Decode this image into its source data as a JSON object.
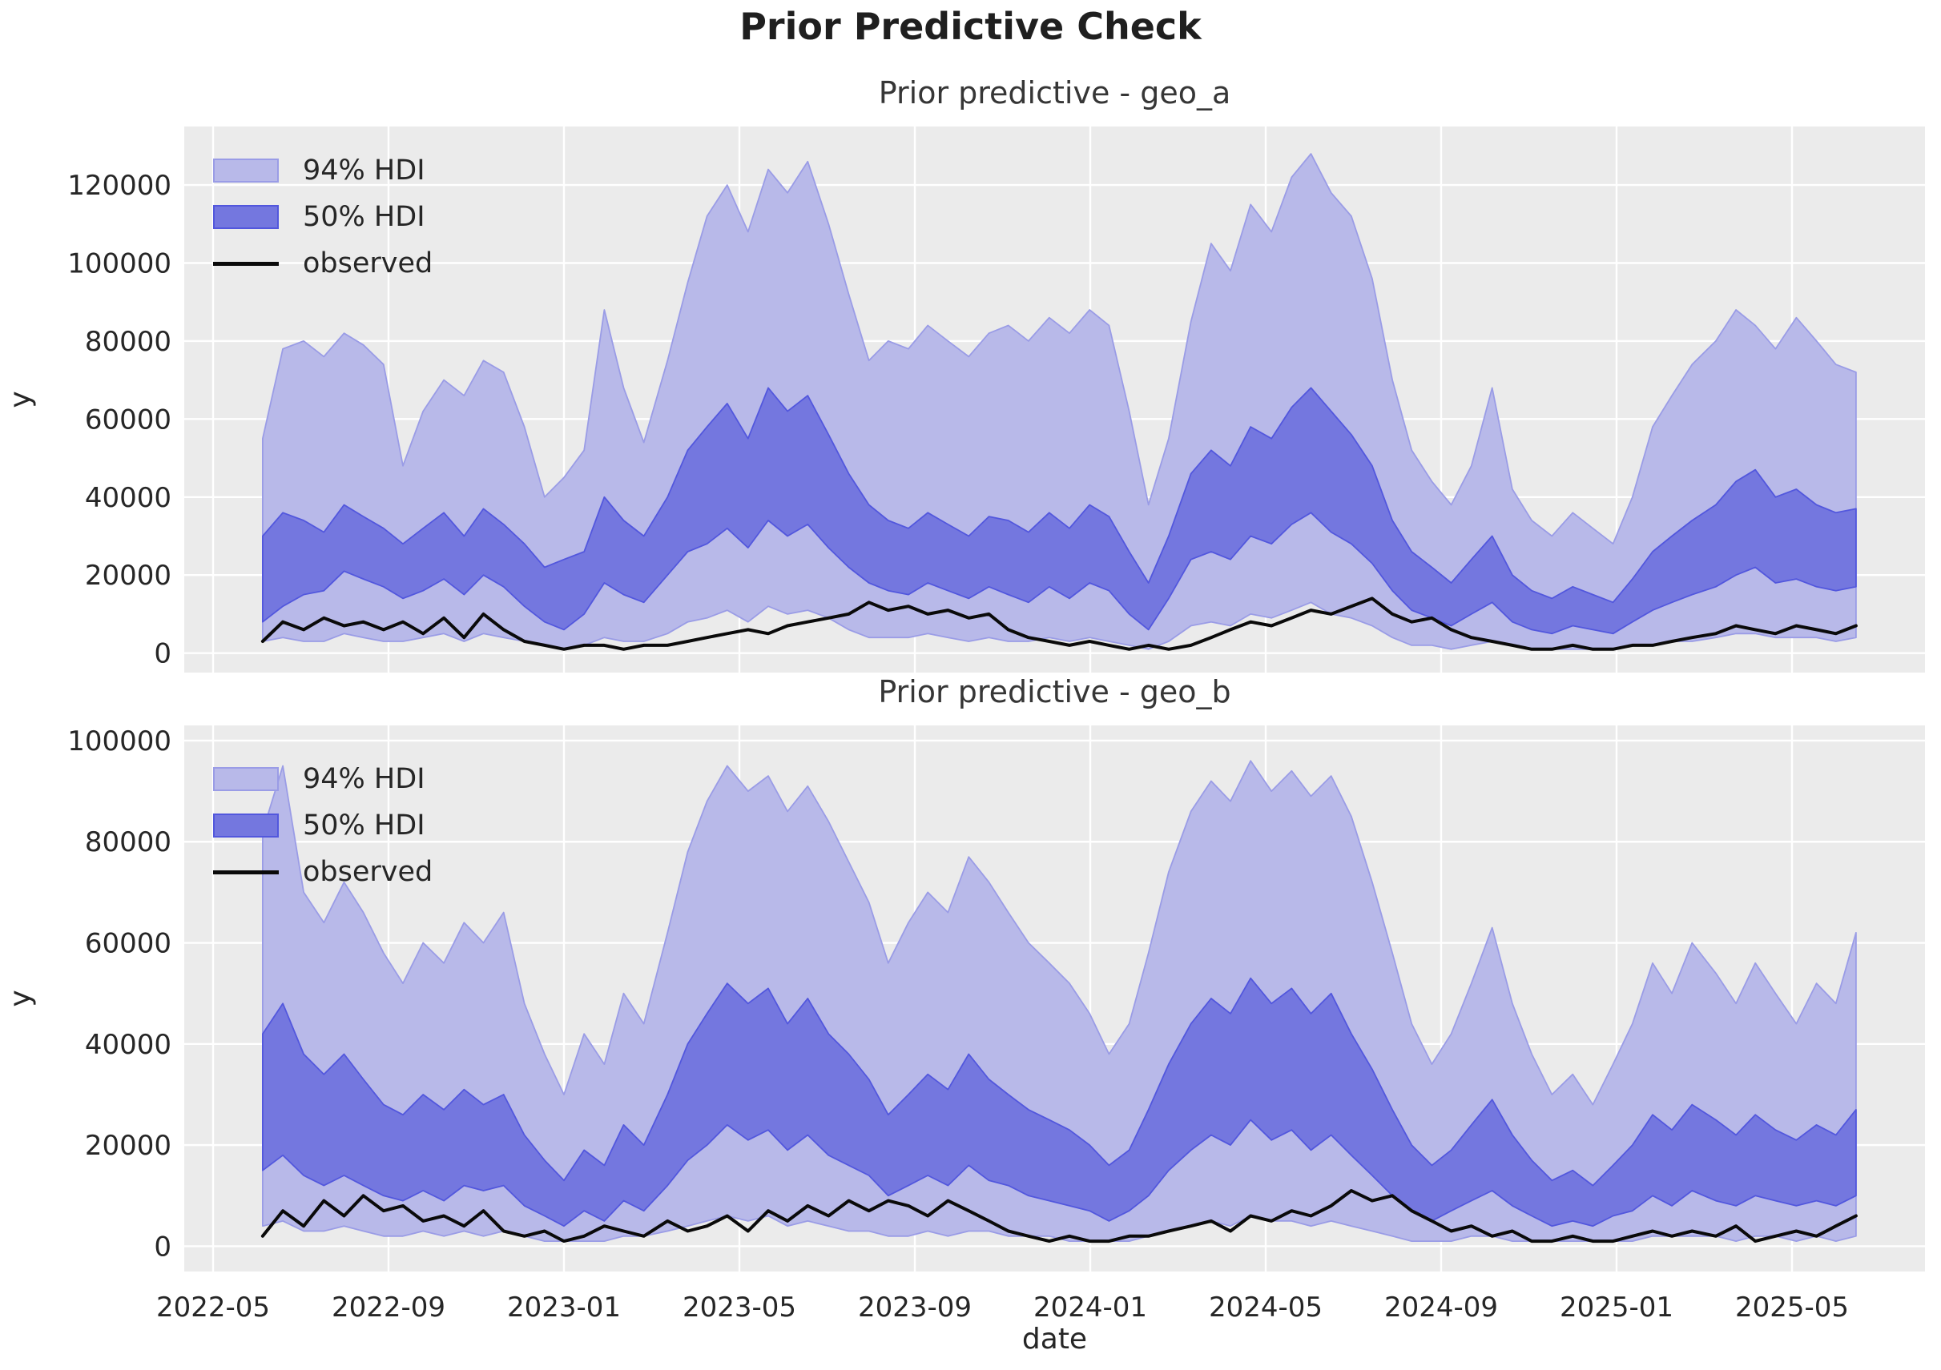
{
  "header": {
    "title": "Prior Predictive Check"
  },
  "xlabel": "date",
  "colors": {
    "figure_bg": "#ffffff",
    "plot_bg": "#ebebeb",
    "grid": "#ffffff",
    "hdi94_fill": "#b8b9e9",
    "hdi94_edge": "#9a9ce6",
    "hdi50_fill": "#7477df",
    "hdi50_edge": "#5257dd",
    "observed": "#0a0a0a",
    "tick_text": "#262626"
  },
  "chart_data": [
    {
      "type": "area",
      "title": "Prior predictive - geo_a",
      "ylabel": "y",
      "grid": true,
      "legend_position": "upper left",
      "ylim": [
        -5000,
        135000
      ],
      "yticks": [
        0,
        20000,
        40000,
        60000,
        80000,
        100000,
        120000
      ],
      "xticks": [
        "2022-05",
        "2022-09",
        "2023-01",
        "2023-05",
        "2023-09",
        "2024-01",
        "2024-05",
        "2024-09",
        "2025-01",
        "2025-05"
      ],
      "x_start": "2022-06-05",
      "x_step_days": 14,
      "series": [
        {
          "name": "94% HDI",
          "type": "band",
          "upper": [
            55000,
            78000,
            80000,
            76000,
            82000,
            79000,
            74000,
            48000,
            62000,
            70000,
            66000,
            75000,
            72000,
            58000,
            40000,
            45000,
            52000,
            88000,
            68000,
            54000,
            75000,
            95000,
            112000,
            120000,
            108000,
            124000,
            118000,
            126000,
            110000,
            92000,
            75000,
            80000,
            78000,
            84000,
            80000,
            76000,
            82000,
            84000,
            80000,
            86000,
            82000,
            88000,
            84000,
            62000,
            38000,
            55000,
            85000,
            105000,
            98000,
            115000,
            108000,
            122000,
            128000,
            118000,
            112000,
            96000,
            70000,
            52000,
            44000,
            38000,
            48000,
            68000,
            42000,
            34000,
            30000,
            36000,
            32000,
            28000,
            40000,
            58000,
            66000,
            74000,
            80000,
            88000,
            84000,
            78000,
            86000,
            80000,
            74000,
            72000
          ],
          "lower": [
            3000,
            4000,
            3000,
            3000,
            5000,
            4000,
            3000,
            3000,
            4000,
            5000,
            3000,
            5000,
            4000,
            3000,
            2000,
            1000,
            2000,
            4000,
            3000,
            3000,
            5000,
            8000,
            9000,
            11000,
            8000,
            12000,
            10000,
            11000,
            9000,
            6000,
            4000,
            4000,
            4000,
            5000,
            4000,
            3000,
            4000,
            3000,
            3000,
            4000,
            3000,
            4000,
            3000,
            2000,
            1000,
            3000,
            7000,
            8000,
            7000,
            10000,
            9000,
            11000,
            13000,
            10000,
            9000,
            7000,
            4000,
            2000,
            2000,
            1000,
            2000,
            3000,
            2000,
            1000,
            1000,
            1000,
            1000,
            1000,
            2000,
            2000,
            3000,
            3000,
            4000,
            5000,
            5000,
            4000,
            4000,
            4000,
            3000,
            4000
          ]
        },
        {
          "name": "50% HDI",
          "type": "band",
          "upper": [
            30000,
            36000,
            34000,
            31000,
            38000,
            35000,
            32000,
            28000,
            32000,
            36000,
            30000,
            37000,
            33000,
            28000,
            22000,
            24000,
            26000,
            40000,
            34000,
            30000,
            40000,
            52000,
            58000,
            64000,
            55000,
            68000,
            62000,
            66000,
            56000,
            46000,
            38000,
            34000,
            32000,
            36000,
            33000,
            30000,
            35000,
            34000,
            31000,
            36000,
            32000,
            38000,
            35000,
            26000,
            18000,
            30000,
            46000,
            52000,
            48000,
            58000,
            55000,
            63000,
            68000,
            62000,
            56000,
            48000,
            34000,
            26000,
            22000,
            18000,
            24000,
            30000,
            20000,
            16000,
            14000,
            17000,
            15000,
            13000,
            19000,
            26000,
            30000,
            34000,
            38000,
            44000,
            47000,
            40000,
            42000,
            38000,
            36000,
            37000
          ],
          "lower": [
            8000,
            12000,
            15000,
            16000,
            21000,
            19000,
            17000,
            14000,
            16000,
            19000,
            15000,
            20000,
            17000,
            12000,
            8000,
            6000,
            10000,
            18000,
            15000,
            13000,
            20000,
            26000,
            28000,
            32000,
            27000,
            34000,
            30000,
            33000,
            27000,
            22000,
            18000,
            16000,
            15000,
            18000,
            16000,
            14000,
            17000,
            15000,
            13000,
            17000,
            14000,
            18000,
            16000,
            10000,
            6000,
            14000,
            24000,
            26000,
            24000,
            30000,
            28000,
            33000,
            36000,
            31000,
            28000,
            23000,
            16000,
            11000,
            9000,
            7000,
            10000,
            13000,
            8000,
            6000,
            5000,
            7000,
            6000,
            5000,
            8000,
            11000,
            13000,
            15000,
            17000,
            20000,
            22000,
            18000,
            19000,
            17000,
            16000,
            17000
          ]
        },
        {
          "name": "observed",
          "type": "line",
          "values": [
            3000,
            8000,
            6000,
            9000,
            7000,
            8000,
            6000,
            8000,
            5000,
            9000,
            4000,
            10000,
            6000,
            3000,
            2000,
            1000,
            2000,
            2000,
            1000,
            2000,
            2000,
            3000,
            4000,
            5000,
            6000,
            5000,
            7000,
            8000,
            9000,
            10000,
            13000,
            11000,
            12000,
            10000,
            11000,
            9000,
            10000,
            6000,
            4000,
            3000,
            2000,
            3000,
            2000,
            1000,
            2000,
            1000,
            2000,
            4000,
            6000,
            8000,
            7000,
            9000,
            11000,
            10000,
            12000,
            14000,
            10000,
            8000,
            9000,
            6000,
            4000,
            3000,
            2000,
            1000,
            1000,
            2000,
            1000,
            1000,
            2000,
            2000,
            3000,
            4000,
            5000,
            7000,
            6000,
            5000,
            7000,
            6000,
            5000,
            7000
          ]
        }
      ]
    },
    {
      "type": "area",
      "title": "Prior predictive - geo_b",
      "ylabel": "y",
      "grid": true,
      "legend_position": "upper left",
      "ylim": [
        -5000,
        103000
      ],
      "yticks": [
        0,
        20000,
        40000,
        60000,
        80000,
        100000
      ],
      "xticks": [
        "2022-05",
        "2022-09",
        "2023-01",
        "2023-05",
        "2023-09",
        "2024-01",
        "2024-05",
        "2024-09",
        "2025-01",
        "2025-05"
      ],
      "x_start": "2022-06-05",
      "x_step_days": 14,
      "series": [
        {
          "name": "94% HDI",
          "type": "band",
          "upper": [
            82000,
            95000,
            70000,
            64000,
            72000,
            66000,
            58000,
            52000,
            60000,
            56000,
            64000,
            60000,
            66000,
            48000,
            38000,
            30000,
            42000,
            36000,
            50000,
            44000,
            62000,
            78000,
            88000,
            95000,
            90000,
            93000,
            86000,
            91000,
            84000,
            76000,
            68000,
            56000,
            64000,
            70000,
            66000,
            77000,
            72000,
            66000,
            60000,
            56000,
            52000,
            46000,
            38000,
            44000,
            58000,
            74000,
            86000,
            92000,
            88000,
            96000,
            90000,
            94000,
            89000,
            93000,
            85000,
            72000,
            58000,
            44000,
            36000,
            42000,
            52000,
            63000,
            48000,
            38000,
            30000,
            34000,
            28000,
            36000,
            44000,
            56000,
            50000,
            60000,
            54000,
            48000,
            56000,
            50000,
            44000,
            52000,
            48000,
            62000
          ],
          "lower": [
            4000,
            5000,
            3000,
            3000,
            4000,
            3000,
            2000,
            2000,
            3000,
            2000,
            3000,
            2000,
            3000,
            2000,
            1000,
            1000,
            1000,
            1000,
            2000,
            2000,
            3000,
            4000,
            5000,
            6000,
            5000,
            6000,
            4000,
            5000,
            4000,
            3000,
            3000,
            2000,
            2000,
            3000,
            2000,
            3000,
            3000,
            2000,
            2000,
            2000,
            1000,
            1000,
            1000,
            1000,
            2000,
            3000,
            4000,
            5000,
            4000,
            6000,
            5000,
            5000,
            4000,
            5000,
            4000,
            3000,
            2000,
            1000,
            1000,
            1000,
            2000,
            2000,
            1000,
            1000,
            1000,
            1000,
            1000,
            1000,
            1000,
            2000,
            2000,
            2000,
            2000,
            1000,
            2000,
            2000,
            1000,
            2000,
            1000,
            2000
          ]
        },
        {
          "name": "50% HDI",
          "type": "band",
          "upper": [
            42000,
            48000,
            38000,
            34000,
            38000,
            33000,
            28000,
            26000,
            30000,
            27000,
            31000,
            28000,
            30000,
            22000,
            17000,
            13000,
            19000,
            16000,
            24000,
            20000,
            30000,
            40000,
            46000,
            52000,
            48000,
            51000,
            44000,
            49000,
            42000,
            38000,
            33000,
            26000,
            30000,
            34000,
            31000,
            38000,
            33000,
            30000,
            27000,
            25000,
            23000,
            20000,
            16000,
            19000,
            27000,
            36000,
            44000,
            49000,
            46000,
            53000,
            48000,
            51000,
            46000,
            50000,
            42000,
            35000,
            27000,
            20000,
            16000,
            19000,
            24000,
            29000,
            22000,
            17000,
            13000,
            15000,
            12000,
            16000,
            20000,
            26000,
            23000,
            28000,
            25000,
            22000,
            26000,
            23000,
            21000,
            24000,
            22000,
            27000
          ],
          "lower": [
            15000,
            18000,
            14000,
            12000,
            14000,
            12000,
            10000,
            9000,
            11000,
            9000,
            12000,
            11000,
            12000,
            8000,
            6000,
            4000,
            7000,
            5000,
            9000,
            7000,
            12000,
            17000,
            20000,
            24000,
            21000,
            23000,
            19000,
            22000,
            18000,
            16000,
            14000,
            10000,
            12000,
            14000,
            12000,
            16000,
            13000,
            12000,
            10000,
            9000,
            8000,
            7000,
            5000,
            7000,
            10000,
            15000,
            19000,
            22000,
            20000,
            25000,
            21000,
            23000,
            19000,
            22000,
            18000,
            14000,
            10000,
            7000,
            5000,
            7000,
            9000,
            11000,
            8000,
            6000,
            4000,
            5000,
            4000,
            6000,
            7000,
            10000,
            8000,
            11000,
            9000,
            8000,
            10000,
            9000,
            8000,
            9000,
            8000,
            10000
          ]
        },
        {
          "name": "observed",
          "type": "line",
          "values": [
            2000,
            7000,
            4000,
            9000,
            6000,
            10000,
            7000,
            8000,
            5000,
            6000,
            4000,
            7000,
            3000,
            2000,
            3000,
            1000,
            2000,
            4000,
            3000,
            2000,
            5000,
            3000,
            4000,
            6000,
            3000,
            7000,
            5000,
            8000,
            6000,
            9000,
            7000,
            9000,
            8000,
            6000,
            9000,
            7000,
            5000,
            3000,
            2000,
            1000,
            2000,
            1000,
            1000,
            2000,
            2000,
            3000,
            4000,
            5000,
            3000,
            6000,
            5000,
            7000,
            6000,
            8000,
            11000,
            9000,
            10000,
            7000,
            5000,
            3000,
            4000,
            2000,
            3000,
            1000,
            1000,
            2000,
            1000,
            1000,
            2000,
            3000,
            2000,
            3000,
            2000,
            4000,
            1000,
            2000,
            3000,
            2000,
            4000,
            6000
          ]
        }
      ]
    }
  ]
}
